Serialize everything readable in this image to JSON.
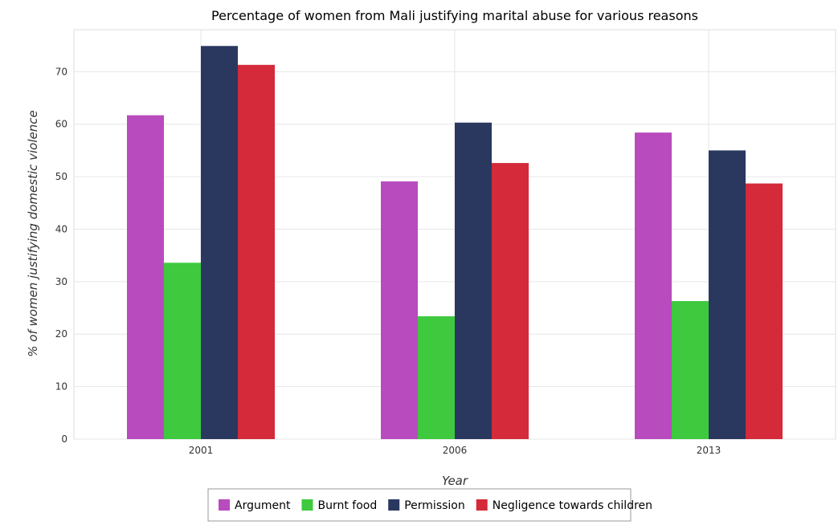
{
  "chart_data": {
    "type": "bar",
    "title": "Percentage of women from Mali justifying marital abuse for various reasons",
    "xlabel": "Year",
    "ylabel": "% of women justifying domestic violence",
    "categories": [
      "2001",
      "2006",
      "2013"
    ],
    "ylim": [
      0,
      78
    ],
    "yticks": [
      0,
      10,
      20,
      30,
      40,
      50,
      60,
      70
    ],
    "grid": true,
    "legend_position": "bottom-center",
    "series": [
      {
        "name": "Argument",
        "color": "#b84bbd",
        "values": [
          61.7,
          49.1,
          58.4
        ]
      },
      {
        "name": "Burnt food",
        "color": "#3ec93e",
        "values": [
          33.6,
          23.4,
          26.3
        ]
      },
      {
        "name": "Permission",
        "color": "#2a3860",
        "values": [
          74.9,
          60.3,
          55.0
        ]
      },
      {
        "name": "Negligence towards children",
        "color": "#d42a3a",
        "values": [
          71.3,
          52.6,
          48.7
        ]
      }
    ]
  }
}
